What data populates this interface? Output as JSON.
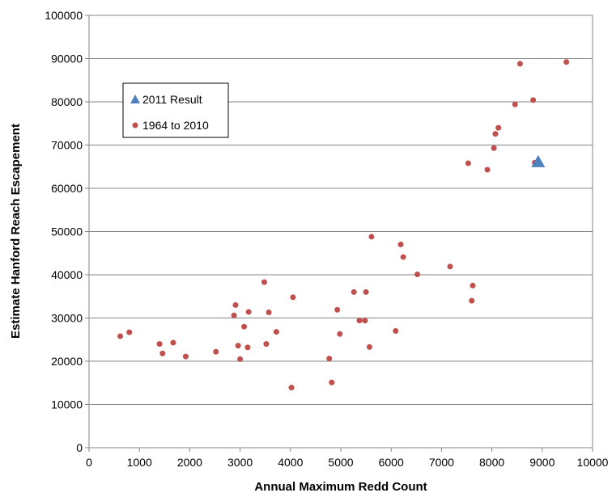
{
  "chart_data": {
    "type": "scatter",
    "xlabel": "Annual Maximum Redd Count",
    "ylabel": "Estimate Hanford Reach Escapement",
    "xlim": [
      0,
      10000
    ],
    "ylim": [
      0,
      100000
    ],
    "xticks": [
      "0",
      "1000",
      "2000",
      "3000",
      "4000",
      "5000",
      "6000",
      "7000",
      "8000",
      "9000",
      "10000"
    ],
    "yticks": [
      "0",
      "10000",
      "20000",
      "30000",
      "40000",
      "50000",
      "60000",
      "70000",
      "80000",
      "90000",
      "100000"
    ],
    "grid": "horizontal",
    "legend_position": "upper-left",
    "series": [
      {
        "name": "2011 Result",
        "marker": "triangle",
        "color": "#4f81bd",
        "points": [
          [
            8920,
            66000
          ]
        ]
      },
      {
        "name": "1964 to 2010",
        "marker": "circle",
        "color": "#c0504d",
        "points": [
          [
            620,
            25800
          ],
          [
            800,
            26700
          ],
          [
            1400,
            24000
          ],
          [
            1460,
            21800
          ],
          [
            1670,
            24300
          ],
          [
            1920,
            21100
          ],
          [
            2520,
            22200
          ],
          [
            2880,
            30600
          ],
          [
            2910,
            33000
          ],
          [
            2960,
            23600
          ],
          [
            3000,
            20500
          ],
          [
            3080,
            28000
          ],
          [
            3150,
            23200
          ],
          [
            3170,
            31400
          ],
          [
            3480,
            38300
          ],
          [
            3520,
            24000
          ],
          [
            3570,
            31300
          ],
          [
            3720,
            26800
          ],
          [
            4020,
            13900
          ],
          [
            4050,
            34800
          ],
          [
            4770,
            20600
          ],
          [
            4820,
            15100
          ],
          [
            4930,
            31900
          ],
          [
            4980,
            26300
          ],
          [
            5260,
            36000
          ],
          [
            5370,
            29400
          ],
          [
            5480,
            29400
          ],
          [
            5500,
            36000
          ],
          [
            5570,
            23300
          ],
          [
            5610,
            48800
          ],
          [
            6090,
            27000
          ],
          [
            6190,
            47000
          ],
          [
            6240,
            44100
          ],
          [
            6520,
            40100
          ],
          [
            7170,
            41900
          ],
          [
            7530,
            65800
          ],
          [
            7600,
            34000
          ],
          [
            7620,
            37500
          ],
          [
            7910,
            64300
          ],
          [
            8040,
            69300
          ],
          [
            8070,
            72600
          ],
          [
            8130,
            74000
          ],
          [
            8460,
            79400
          ],
          [
            8560,
            88800
          ],
          [
            8820,
            80400
          ],
          [
            8850,
            65900
          ],
          [
            9480,
            89200
          ]
        ]
      }
    ]
  }
}
